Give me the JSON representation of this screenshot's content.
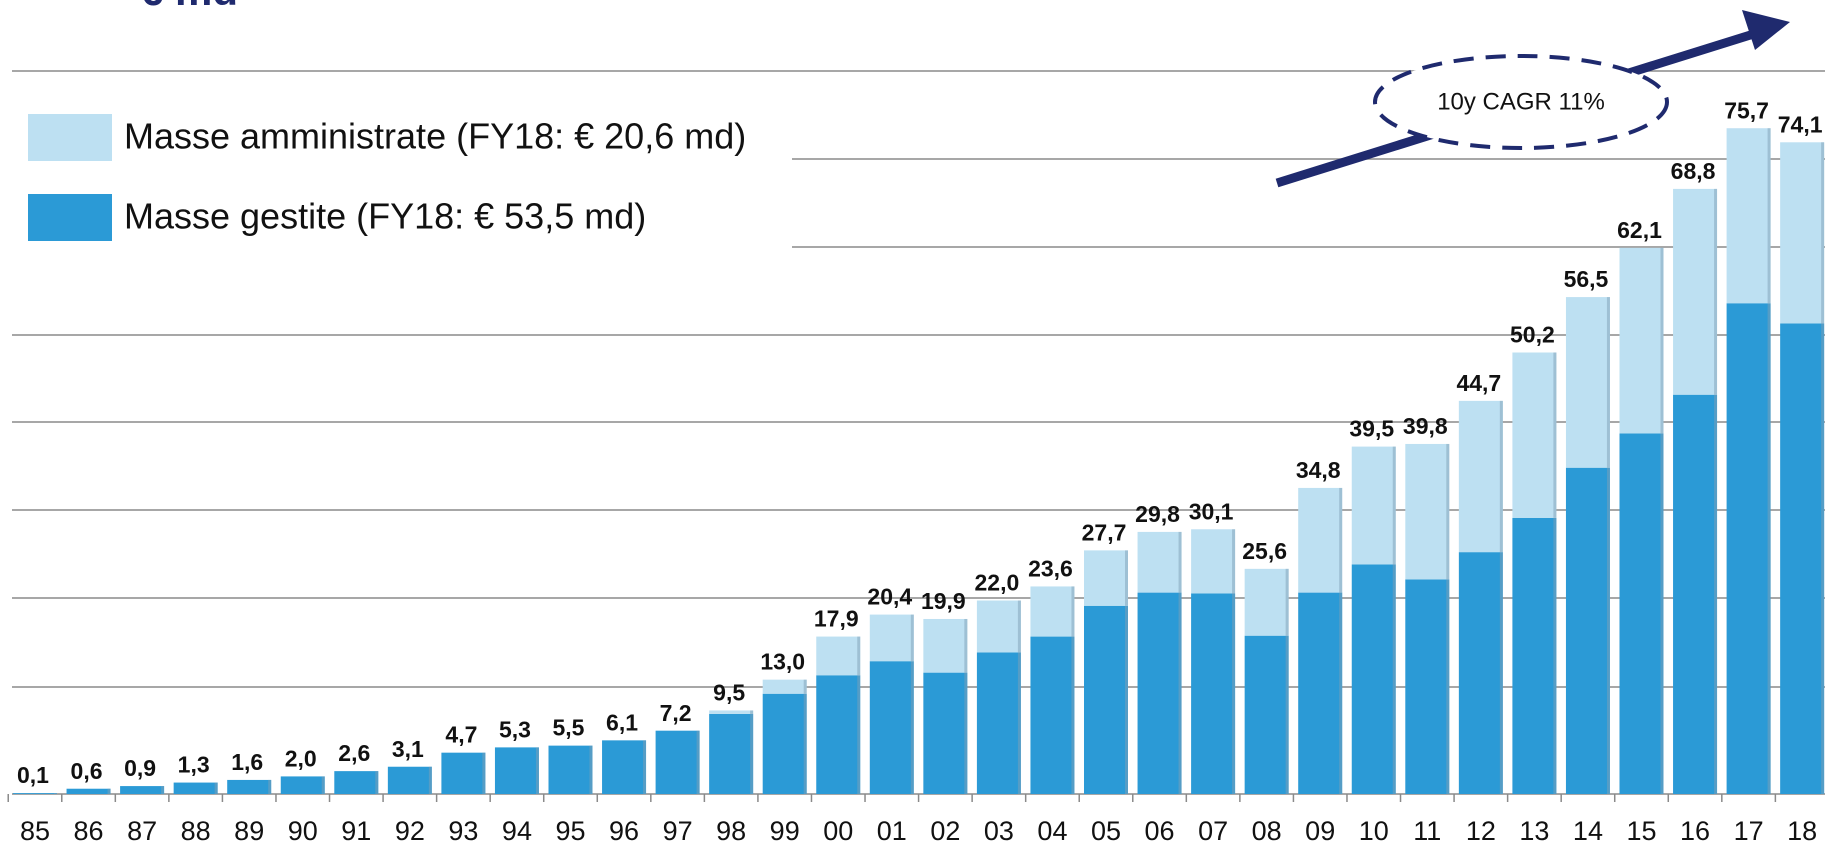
{
  "chart_data": {
    "type": "stacked_bar",
    "title": "€ md",
    "annotation": "10y CAGR 11%",
    "categories": [
      "85",
      "86",
      "87",
      "88",
      "89",
      "90",
      "91",
      "92",
      "93",
      "94",
      "95",
      "96",
      "97",
      "98",
      "99",
      "00",
      "01",
      "02",
      "03",
      "04",
      "05",
      "06",
      "07",
      "08",
      "09",
      "10",
      "11",
      "12",
      "13",
      "14",
      "15",
      "16",
      "17",
      "18"
    ],
    "series": [
      {
        "name": "Masse gestite (FY18: € 53,5 md)",
        "color": "#2b9ad6",
        "values": [
          0.1,
          0.6,
          0.9,
          1.3,
          1.6,
          2.0,
          2.6,
          3.1,
          4.7,
          5.3,
          5.5,
          6.1,
          7.2,
          9.1,
          11.4,
          13.5,
          15.1,
          13.8,
          16.1,
          17.9,
          21.4,
          22.9,
          22.8,
          18.0,
          22.9,
          26.1,
          24.4,
          27.5,
          31.4,
          37.1,
          41.0,
          45.4,
          55.8,
          53.5
        ]
      },
      {
        "name": "Masse amministrate (FY18: € 20,6 md)",
        "color": "#bde0f2",
        "values": [
          0,
          0,
          0,
          0,
          0,
          0,
          0,
          0,
          0,
          0,
          0,
          0,
          0,
          0.4,
          1.6,
          4.4,
          5.3,
          6.1,
          5.9,
          5.7,
          6.3,
          6.9,
          7.3,
          7.6,
          11.9,
          13.4,
          15.4,
          17.2,
          18.8,
          19.4,
          21.1,
          23.4,
          19.9,
          20.6
        ]
      }
    ],
    "totals": [
      0.1,
      0.6,
      0.9,
      1.3,
      1.6,
      2.0,
      2.6,
      3.1,
      4.7,
      5.3,
      5.5,
      6.1,
      7.2,
      9.5,
      13.0,
      17.9,
      20.4,
      19.9,
      22.0,
      23.6,
      27.7,
      29.8,
      30.1,
      25.6,
      34.8,
      39.5,
      39.8,
      44.7,
      50.2,
      56.5,
      62.1,
      68.8,
      75.7,
      74.1
    ],
    "total_labels": [
      "0,1",
      "0,6",
      "0,9",
      "1,3",
      "1,6",
      "2,0",
      "2,6",
      "3,1",
      "4,7",
      "5,3",
      "5,5",
      "6,1",
      "7,2",
      "9,5",
      "13,0",
      "17,9",
      "20,4",
      "19,9",
      "22,0",
      "23,6",
      "27,7",
      "29,8",
      "30,1",
      "25,6",
      "34,8",
      "39,5",
      "39,8",
      "44,7",
      "50,2",
      "56,5",
      "62,1",
      "68,8",
      "75,7",
      "74,1"
    ],
    "ylim": [
      0,
      90
    ]
  }
}
